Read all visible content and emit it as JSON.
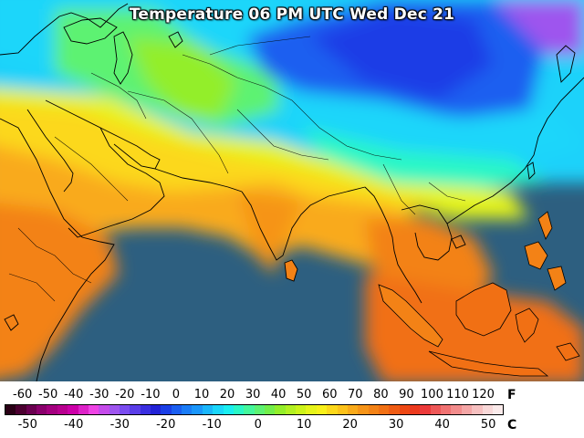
{
  "title": "Temperature 06 PM UTC Wed Dec 21",
  "legend": {
    "fahrenheit_unit": "F",
    "celsius_unit": "C",
    "fahrenheit_ticks": [
      "-60",
      "-50",
      "-40",
      "-30",
      "-20",
      "-10",
      "0",
      "10",
      "20",
      "30",
      "40",
      "50",
      "60",
      "70",
      "80",
      "90",
      "100",
      "110",
      "120"
    ],
    "celsius_ticks": [
      "-50",
      "-40",
      "-30",
      "-20",
      "-10",
      "0",
      "10",
      "20",
      "30",
      "40",
      "50"
    ],
    "colors": [
      "#2a0016",
      "#4b0030",
      "#6a0050",
      "#8a006c",
      "#a4007f",
      "#b8008f",
      "#cc00a8",
      "#dd22c8",
      "#ee44e4",
      "#c54bea",
      "#9e55ee",
      "#7a4cf0",
      "#5a3de8",
      "#3a2ee0",
      "#2222d6",
      "#1a3ee6",
      "#1a5ef0",
      "#1a7cf6",
      "#1a96fa",
      "#1ab6fa",
      "#1ad6fa",
      "#1aeef0",
      "#2af7c6",
      "#44f79c",
      "#5df272",
      "#72ee4a",
      "#93ee2a",
      "#b2f022",
      "#ccf31a",
      "#e6f41a",
      "#f8f01a",
      "#fcd81a",
      "#fcc21a",
      "#f9aa1a",
      "#f69418",
      "#f38216",
      "#f17014",
      "#ef5c14",
      "#ee4814",
      "#ec3a1e",
      "#ec3a3a",
      "#ee5858",
      "#f07272",
      "#f28c8c",
      "#f4a6a6",
      "#f6c0c0",
      "#f8d8d8",
      "#faeaea"
    ]
  }
}
